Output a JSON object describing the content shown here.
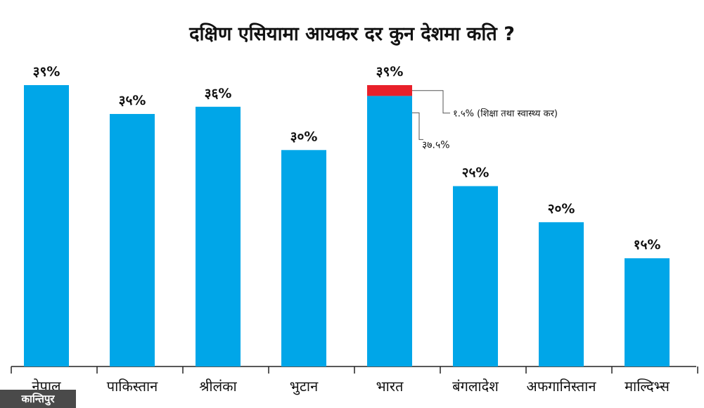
{
  "title": "दक्षिण एसियामा आयकर दर कुन देशमा कति ?",
  "brand": "कान्तिपुर",
  "colors": {
    "bar": "#00a6e8",
    "stack": "#e8202a",
    "axis": "#222222",
    "text": "#111111"
  },
  "chart_data": {
    "type": "bar",
    "title": "दक्षिण एसियामा आयकर दर कुन देशमा कति ?",
    "xlabel": "",
    "ylabel": "",
    "ylim": [
      0,
      39
    ],
    "grid": false,
    "categories": [
      "नेपाल",
      "पाकिस्तान",
      "श्रीलंका",
      "भुटान",
      "भारत",
      "बंगलादेश",
      "अफगानिस्तान",
      "माल्दिभ्स"
    ],
    "values": [
      39,
      35,
      36,
      30,
      39,
      25,
      20,
      15
    ],
    "value_labels": [
      "३९%",
      "३५%",
      "३६%",
      "३०%",
      "३९%",
      "२५%",
      "२०%",
      "१५%"
    ],
    "stacked": {
      "category": "भारत",
      "segments": [
        {
          "value": 37.5,
          "label": "३७.५%"
        },
        {
          "value": 1.5,
          "label": "१.५% (शिक्षा तथा स्वास्थ्य कर)"
        }
      ]
    }
  }
}
